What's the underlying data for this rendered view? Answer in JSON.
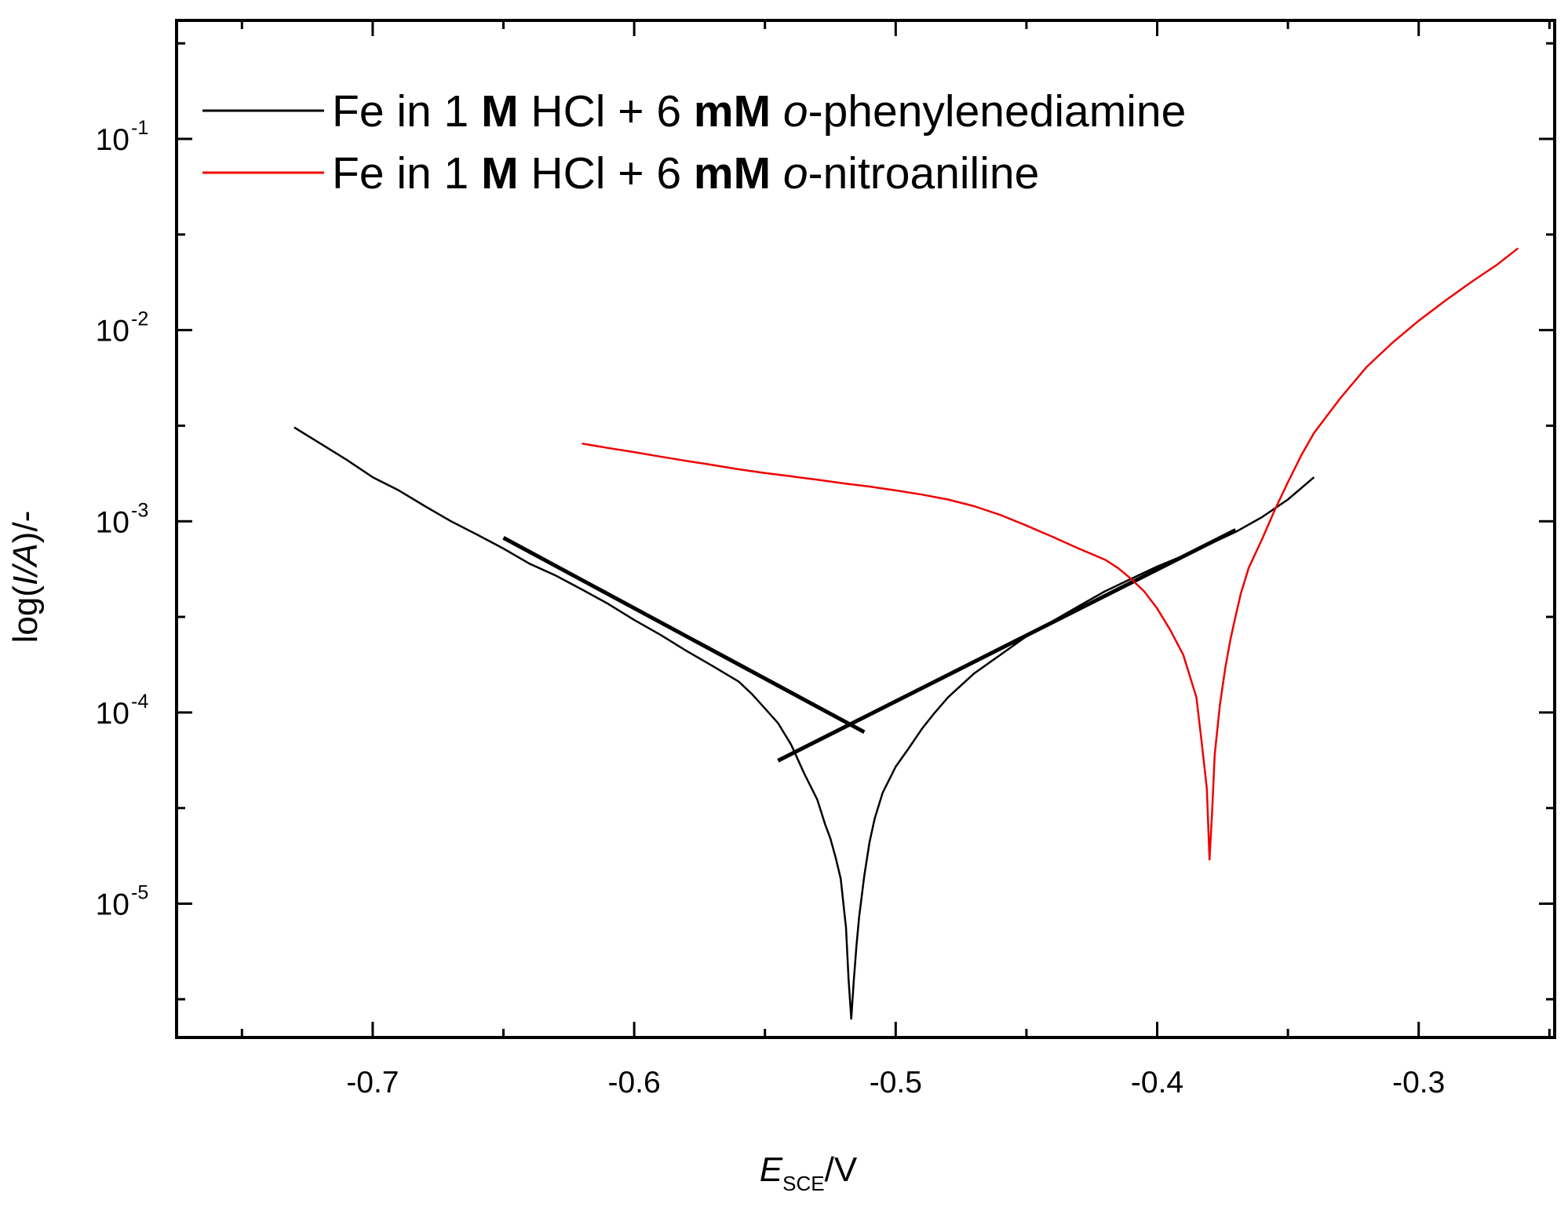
{
  "chart_data": {
    "type": "line",
    "title": "",
    "xlabel": {
      "main": "E",
      "sub": "SCE",
      "suffix": "/V"
    },
    "ylabel": {
      "prefix": "log(",
      "italic": "I/A",
      "suffix": ")/-"
    },
    "xlim": [
      -0.775,
      -0.248
    ],
    "ylim_log10": [
      -5.7,
      -0.38
    ],
    "y_scale": "log",
    "x_ticks": [
      {
        "value": -0.7,
        "label": "-0.7"
      },
      {
        "value": -0.6,
        "label": "-0.6"
      },
      {
        "value": -0.5,
        "label": "-0.5"
      },
      {
        "value": -0.4,
        "label": "-0.4"
      },
      {
        "value": -0.3,
        "label": "-0.3"
      }
    ],
    "x_minor_ticks": [
      -0.75,
      -0.65,
      -0.55,
      -0.45,
      -0.35,
      -0.25
    ],
    "y_ticks": [
      {
        "exp": -1,
        "base": "10",
        "label": "-1"
      },
      {
        "exp": -2,
        "base": "10",
        "label": "-2"
      },
      {
        "exp": -3,
        "base": "10",
        "label": "-3"
      },
      {
        "exp": -4,
        "base": "10",
        "label": "-4"
      },
      {
        "exp": -5,
        "base": "10",
        "label": "-5"
      }
    ],
    "y_minor_ticks": [
      -0.5,
      -1.5,
      -2.5,
      -3.5,
      -4.5,
      -5.5
    ],
    "legend_position": "top-left",
    "series": [
      {
        "name": "o-phenylenediamine",
        "color": "#000000",
        "legend": [
          {
            "text": "Fe in 1 ",
            "style": "normal"
          },
          {
            "text": "M",
            "style": "bold"
          },
          {
            "text": " HCl + 6 ",
            "style": "normal"
          },
          {
            "text": "mM",
            "style": "bold"
          },
          {
            "text": " ",
            "style": "normal"
          },
          {
            "text": "o",
            "style": "italic"
          },
          {
            "text": "-phenylenediamine",
            "style": "normal"
          }
        ],
        "x": [
          -0.73,
          -0.72,
          -0.71,
          -0.7,
          -0.69,
          -0.68,
          -0.67,
          -0.66,
          -0.65,
          -0.64,
          -0.63,
          -0.62,
          -0.61,
          -0.6,
          -0.59,
          -0.58,
          -0.57,
          -0.56,
          -0.555,
          -0.55,
          -0.545,
          -0.54,
          -0.535,
          -0.53,
          -0.527,
          -0.525,
          -0.523,
          -0.521,
          -0.52,
          -0.519,
          -0.518,
          -0.517,
          -0.516,
          -0.515,
          -0.514,
          -0.512,
          -0.51,
          -0.508,
          -0.505,
          -0.5,
          -0.495,
          -0.49,
          -0.485,
          -0.48,
          -0.47,
          -0.46,
          -0.45,
          -0.44,
          -0.43,
          -0.42,
          -0.41,
          -0.4,
          -0.39,
          -0.38,
          -0.37,
          -0.36,
          -0.35,
          -0.34
        ],
        "y": [
          0.0031,
          0.00255,
          0.0021,
          0.0017,
          0.00145,
          0.0012,
          0.001,
          0.00085,
          0.00072,
          0.0006,
          0.00052,
          0.00044,
          0.00037,
          0.000305,
          0.000255,
          0.00021,
          0.000175,
          0.000145,
          0.000125,
          0.000105,
          8.8e-05,
          6.8e-05,
          4.8e-05,
          3.5e-05,
          2.6e-05,
          2.2e-05,
          1.75e-05,
          1.35e-05,
          1e-05,
          7.5e-06,
          4e-06,
          2.5e-06,
          4e-06,
          6e-06,
          8.5e-06,
          1.4e-05,
          2.1e-05,
          2.8e-05,
          3.8e-05,
          5.2e-05,
          6.5e-05,
          8.2e-05,
          0.0001,
          0.00012,
          0.00016,
          0.0002,
          0.00025,
          0.0003,
          0.00036,
          0.00043,
          0.0005,
          0.00058,
          0.00066,
          0.00076,
          0.00088,
          0.00105,
          0.0013,
          0.0017
        ]
      },
      {
        "name": "o-nitroaniline",
        "color": "#ee0000",
        "legend": [
          {
            "text": "Fe in 1 ",
            "style": "normal"
          },
          {
            "text": "M",
            "style": "bold"
          },
          {
            "text": " HCl + 6 ",
            "style": "normal"
          },
          {
            "text": "mM",
            "style": "bold"
          },
          {
            "text": " ",
            "style": "normal"
          },
          {
            "text": "o",
            "style": "italic"
          },
          {
            "text": "-nitroaniline",
            "style": "normal"
          }
        ],
        "x": [
          -0.62,
          -0.61,
          -0.6,
          -0.59,
          -0.58,
          -0.57,
          -0.56,
          -0.55,
          -0.54,
          -0.53,
          -0.52,
          -0.51,
          -0.5,
          -0.49,
          -0.48,
          -0.47,
          -0.46,
          -0.45,
          -0.44,
          -0.43,
          -0.42,
          -0.415,
          -0.41,
          -0.405,
          -0.4,
          -0.395,
          -0.39,
          -0.385,
          -0.383,
          -0.381,
          -0.38,
          -0.379,
          -0.378,
          -0.376,
          -0.374,
          -0.372,
          -0.37,
          -0.368,
          -0.365,
          -0.36,
          -0.355,
          -0.35,
          -0.345,
          -0.34,
          -0.33,
          -0.32,
          -0.31,
          -0.3,
          -0.29,
          -0.28,
          -0.27,
          -0.262
        ],
        "y": [
          0.00255,
          0.00242,
          0.0023,
          0.00218,
          0.00207,
          0.00197,
          0.00187,
          0.00179,
          0.00172,
          0.00165,
          0.00158,
          0.00152,
          0.00145,
          0.00138,
          0.0013,
          0.0012,
          0.00108,
          0.00095,
          0.00083,
          0.00072,
          0.00063,
          0.00057,
          0.0005,
          0.00043,
          0.00035,
          0.00027,
          0.0002,
          0.00012,
          7e-05,
          4e-05,
          1.7e-05,
          3e-05,
          6e-05,
          0.00011,
          0.00017,
          0.00024,
          0.00032,
          0.00042,
          0.00057,
          0.0008,
          0.00115,
          0.0016,
          0.0022,
          0.0029,
          0.0044,
          0.0064,
          0.0086,
          0.0112,
          0.0142,
          0.0178,
          0.022,
          0.0268
        ]
      }
    ],
    "tafel_lines": [
      {
        "name": "cathodic-tafel-line",
        "color": "#000000",
        "x": [
          -0.65,
          -0.512
        ],
        "y": [
          0.00082,
          7.9e-05
        ]
      },
      {
        "name": "anodic-tafel-line",
        "color": "#000000",
        "x": [
          -0.545,
          -0.37
        ],
        "y": [
          5.6e-05,
          0.0009
        ]
      }
    ]
  }
}
